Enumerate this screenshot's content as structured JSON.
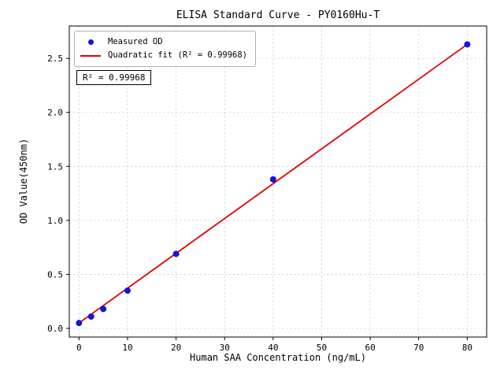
{
  "chart_data": {
    "type": "scatter",
    "title": "ELISA Standard Curve - PY0160Hu-T",
    "xlabel": "Human SAA Concentration (ng/mL)",
    "ylabel": "OD Value(450nm)",
    "xlim": [
      -2,
      84
    ],
    "ylim": [
      -0.08,
      2.8
    ],
    "x_ticks": [
      0,
      10,
      20,
      30,
      40,
      50,
      60,
      70,
      80
    ],
    "y_ticks": [
      0.0,
      0.5,
      1.0,
      1.5,
      2.0,
      2.5
    ],
    "grid": true,
    "legend_position": "upper left",
    "series": [
      {
        "name": "Measured OD",
        "type": "scatter",
        "color": "#1414dc",
        "x": [
          0,
          2.5,
          5,
          10,
          20,
          40,
          80
        ],
        "y": [
          0.05,
          0.11,
          0.18,
          0.35,
          0.69,
          1.38,
          2.63
        ]
      },
      {
        "name": "Quadratic fit (R² = 0.99968)",
        "type": "line",
        "color": "#e60000",
        "x": [
          0,
          80
        ],
        "y": [
          0.05,
          2.63
        ]
      }
    ],
    "annotation": {
      "text": "R² = 0.99968",
      "position": "upper left"
    },
    "colors": {
      "grid": "#c8c8c8",
      "spine": "#000000",
      "background": "#ffffff"
    }
  }
}
